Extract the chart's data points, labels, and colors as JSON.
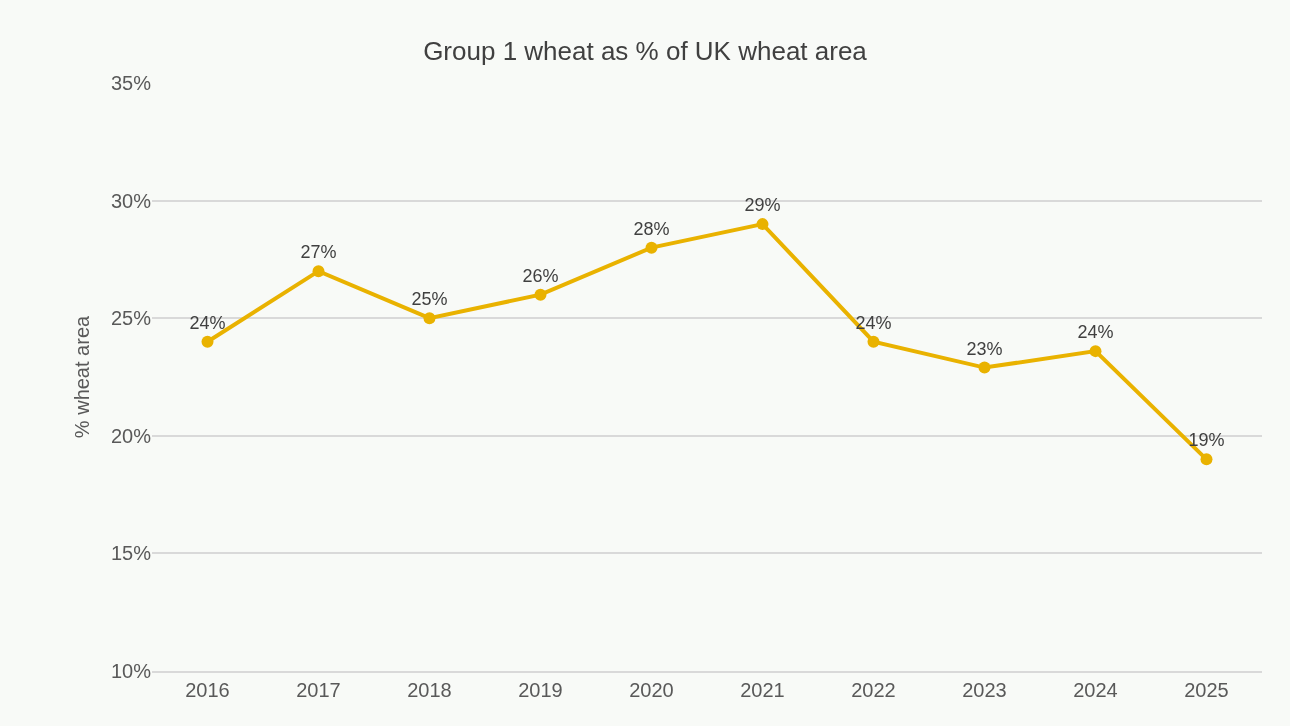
{
  "chart_data": {
    "type": "line",
    "title": "Group 1 wheat as % of UK wheat area",
    "ylabel": "% wheat area",
    "categories": [
      "2016",
      "2017",
      "2018",
      "2019",
      "2020",
      "2021",
      "2022",
      "2023",
      "2024",
      "2025"
    ],
    "series": [
      {
        "color": "#e9b200",
        "values": [
          24,
          27,
          25,
          26,
          28,
          29,
          24,
          22.9,
          23.6,
          19.0
        ],
        "value_labels": [
          "24%",
          "27%",
          "25%",
          "26%",
          "28%",
          "29%",
          "24%",
          "23%",
          "24%",
          "19%"
        ]
      }
    ],
    "ylim": [
      10,
      35
    ],
    "yticks": [
      {
        "value": 10,
        "label": "10%"
      },
      {
        "value": 15,
        "label": "15%"
      },
      {
        "value": 20,
        "label": "20%"
      },
      {
        "value": 25,
        "label": "25%"
      },
      {
        "value": 30,
        "label": "30%"
      },
      {
        "value": 35,
        "label": "35%"
      }
    ],
    "grid": "y",
    "marker": "circle",
    "line_style": "solid"
  }
}
